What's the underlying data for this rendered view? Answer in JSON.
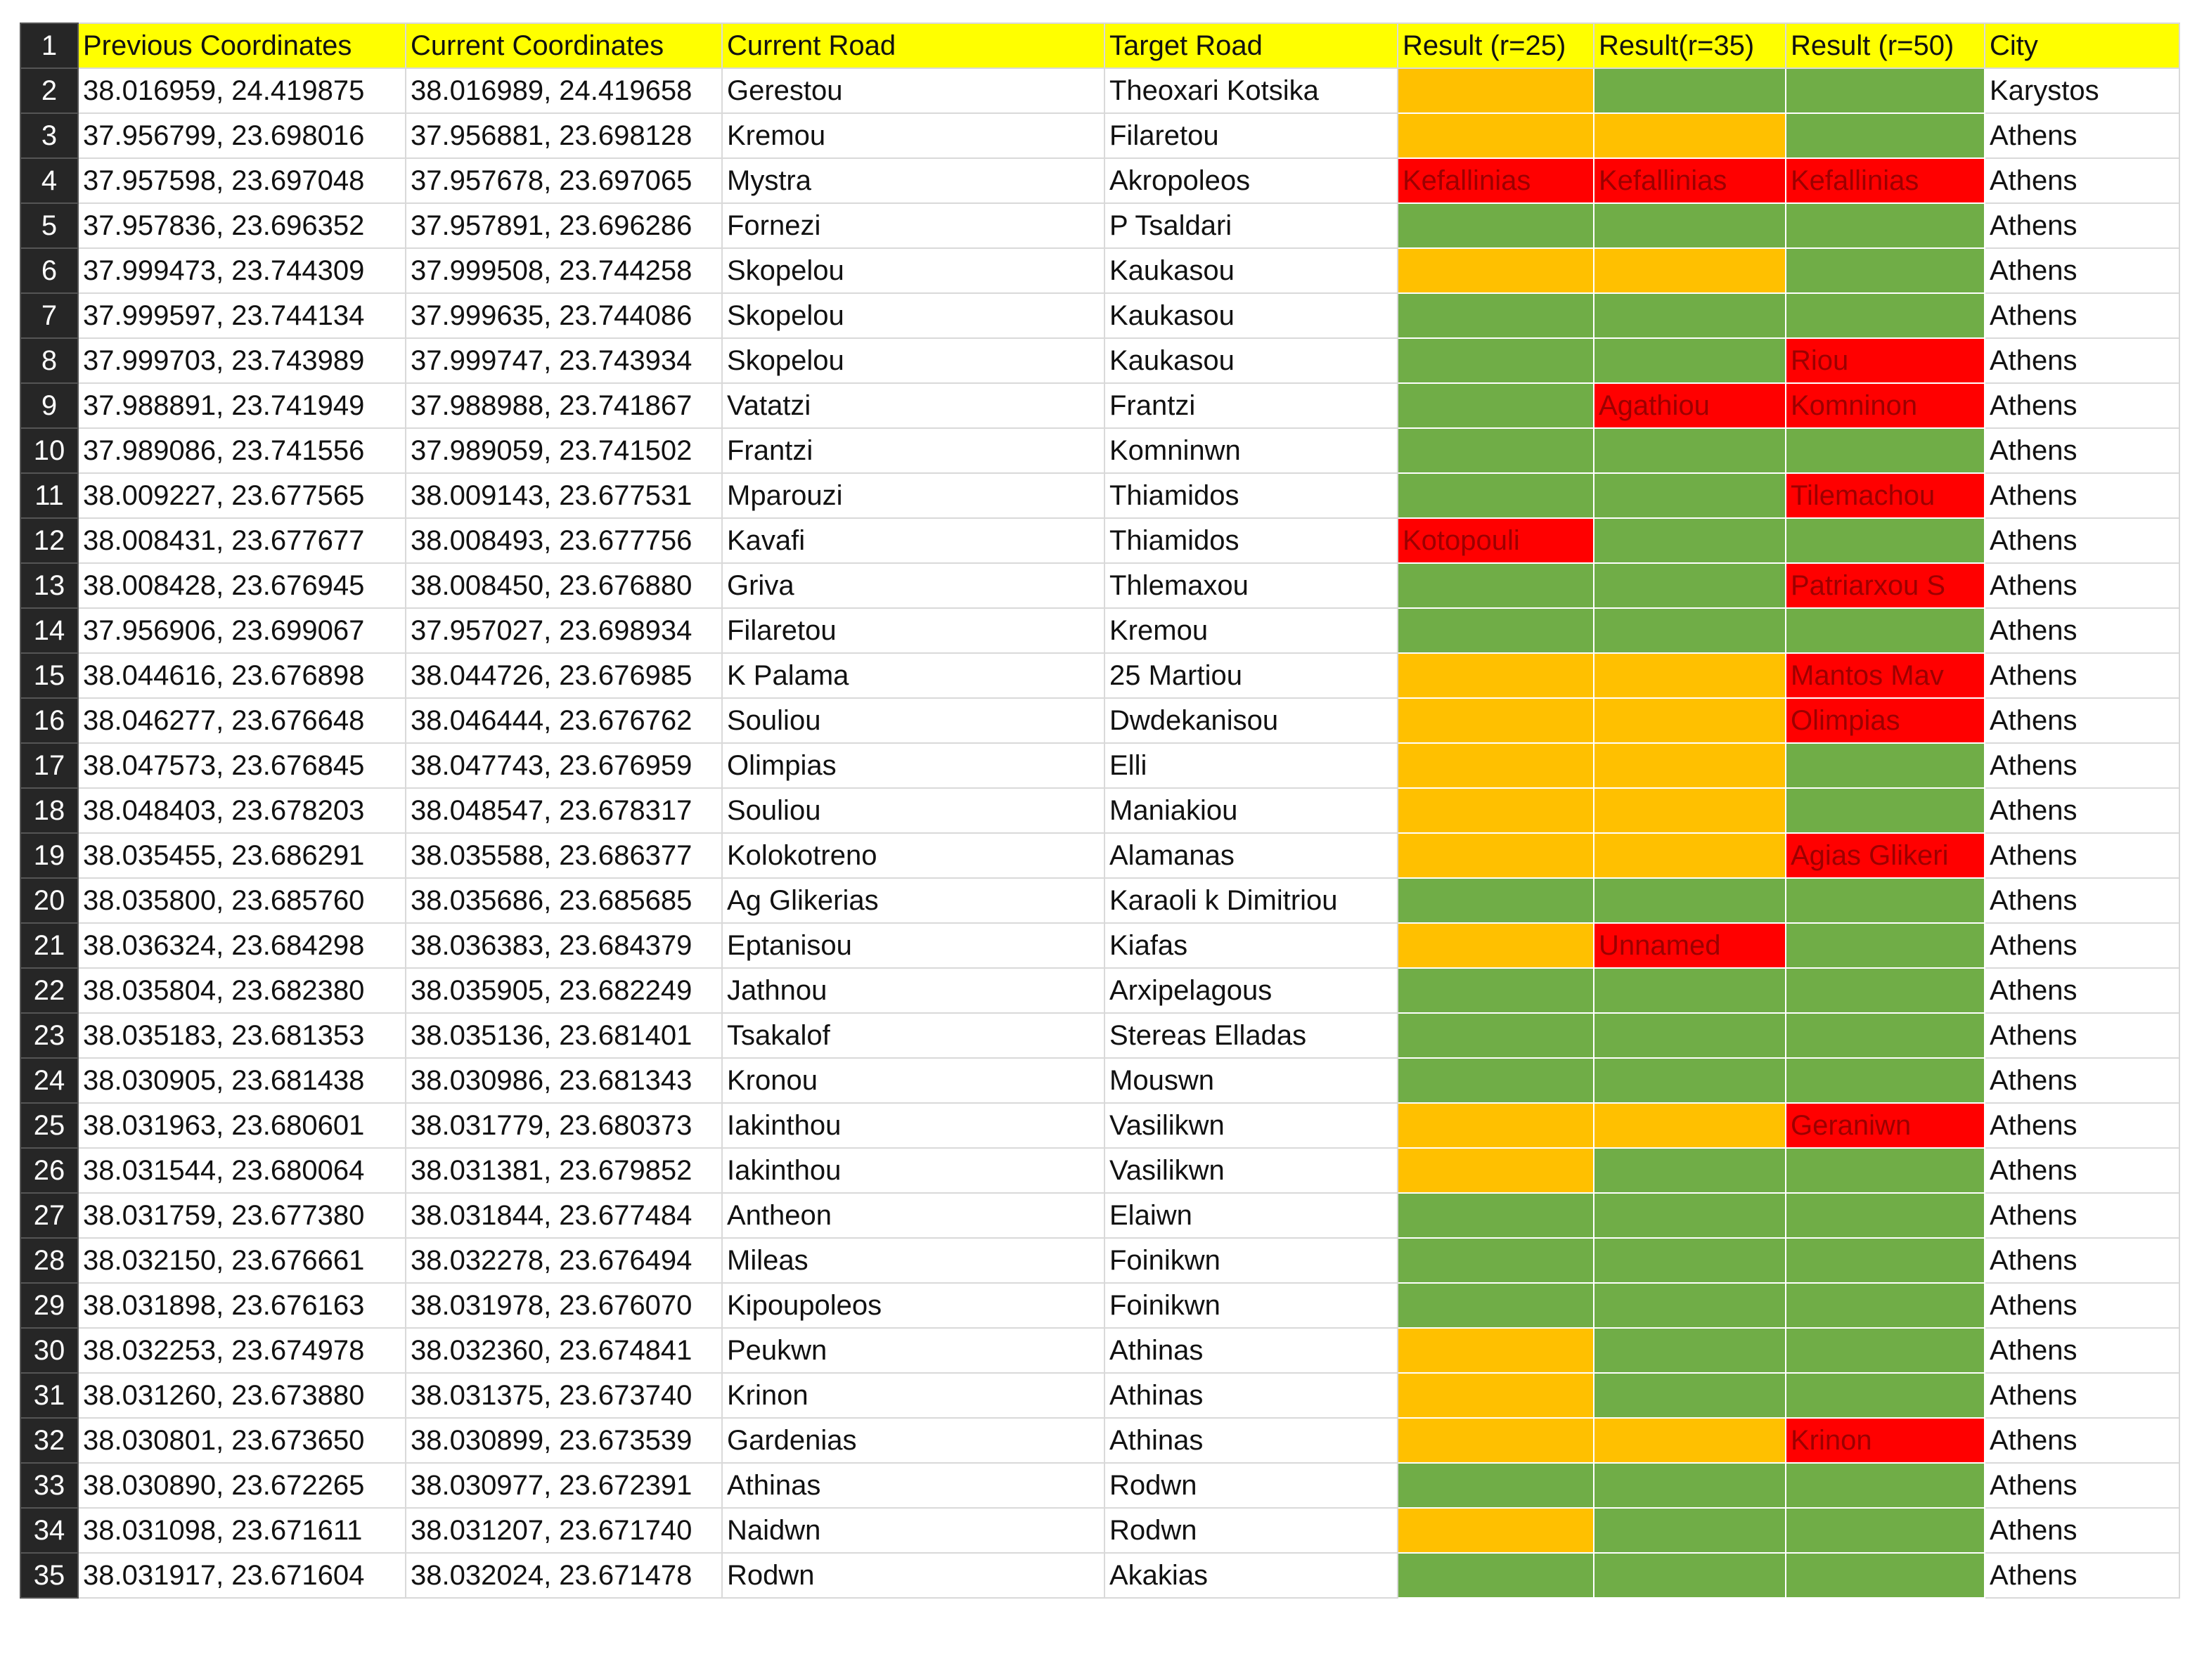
{
  "header": {
    "row_number": 1,
    "columns": [
      "Previous Coordinates",
      "Current Coordinates",
      "Current Road",
      "Target Road",
      "Result (r=25)",
      "Result(r=35)",
      "Result (r=50)",
      "City"
    ],
    "color": "#ffff00"
  },
  "rows": [
    [
      2,
      "38.016959, 24.419875",
      "38.016989, 24.419658",
      "Gerestou",
      "Theoxari Kotsika",
      {
        "color": "#ffc000"
      },
      {
        "color": "#70ad47"
      },
      {
        "color": "#70ad47"
      },
      "Karystos"
    ],
    [
      3,
      "37.956799, 23.698016",
      "37.956881, 23.698128",
      "Kremou",
      "Filaretou",
      {
        "color": "#ffc000"
      },
      {
        "color": "#ffc000"
      },
      {
        "color": "#70ad47"
      },
      "Athens"
    ],
    [
      4,
      "37.957598, 23.697048",
      "37.957678, 23.697065",
      "Mystra",
      "Akropoleos",
      {
        "color": "#ff0000",
        "text": "Kefallinias"
      },
      {
        "color": "#ff0000",
        "text": "Kefallinias"
      },
      {
        "color": "#ff0000",
        "text": "Kefallinias"
      },
      "Athens"
    ],
    [
      5,
      "37.957836, 23.696352",
      "37.957891, 23.696286",
      "Fornezi",
      "P Tsaldari",
      {
        "color": "#70ad47"
      },
      {
        "color": "#70ad47"
      },
      {
        "color": "#70ad47"
      },
      "Athens"
    ],
    [
      6,
      "37.999473, 23.744309",
      "37.999508, 23.744258",
      "Skopelou",
      "Kaukasou",
      {
        "color": "#ffc000"
      },
      {
        "color": "#ffc000"
      },
      {
        "color": "#70ad47"
      },
      "Athens"
    ],
    [
      7,
      "37.999597, 23.744134",
      "37.999635, 23.744086",
      "Skopelou",
      "Kaukasou",
      {
        "color": "#70ad47"
      },
      {
        "color": "#70ad47"
      },
      {
        "color": "#70ad47"
      },
      "Athens"
    ],
    [
      8,
      "37.999703, 23.743989",
      "37.999747, 23.743934",
      "Skopelou",
      "Kaukasou",
      {
        "color": "#70ad47"
      },
      {
        "color": "#70ad47"
      },
      {
        "color": "#ff0000",
        "text": "Riou"
      },
      "Athens"
    ],
    [
      9,
      "37.988891, 23.741949",
      "37.988988, 23.741867",
      "Vatatzi",
      "Frantzi",
      {
        "color": "#70ad47"
      },
      {
        "color": "#ff0000",
        "text": "Agathiou"
      },
      {
        "color": "#ff0000",
        "text": "Komninon"
      },
      "Athens"
    ],
    [
      10,
      "37.989086, 23.741556",
      "37.989059, 23.741502",
      "Frantzi",
      "Komninwn",
      {
        "color": "#70ad47"
      },
      {
        "color": "#70ad47"
      },
      {
        "color": "#70ad47"
      },
      "Athens"
    ],
    [
      11,
      "38.009227, 23.677565",
      "38.009143, 23.677531",
      "Mparouzi",
      "Thiamidos",
      {
        "color": "#70ad47"
      },
      {
        "color": "#70ad47"
      },
      {
        "color": "#ff0000",
        "text": "Tilemachou"
      },
      "Athens"
    ],
    [
      12,
      "38.008431, 23.677677",
      "38.008493, 23.677756",
      "Kavafi",
      "Thiamidos",
      {
        "color": "#ff0000",
        "text": "Kotopouli"
      },
      {
        "color": "#70ad47"
      },
      {
        "color": "#70ad47"
      },
      "Athens"
    ],
    [
      13,
      "38.008428, 23.676945",
      "38.008450, 23.676880",
      "Griva",
      "Thlemaxou",
      {
        "color": "#70ad47"
      },
      {
        "color": "#70ad47"
      },
      {
        "color": "#ff0000",
        "text": "Patriarxou S"
      },
      "Athens"
    ],
    [
      14,
      "37.956906, 23.699067",
      "37.957027, 23.698934",
      "Filaretou",
      "Kremou",
      {
        "color": "#70ad47"
      },
      {
        "color": "#70ad47"
      },
      {
        "color": "#70ad47"
      },
      "Athens"
    ],
    [
      15,
      "38.044616, 23.676898",
      "38.044726, 23.676985",
      "K Palama",
      "25 Martiou",
      {
        "color": "#ffc000"
      },
      {
        "color": "#ffc000"
      },
      {
        "color": "#ff0000",
        "text": "Mantos Mav"
      },
      "Athens"
    ],
    [
      16,
      "38.046277, 23.676648",
      "38.046444, 23.676762",
      "Souliou",
      "Dwdekanisou",
      {
        "color": "#ffc000"
      },
      {
        "color": "#ffc000"
      },
      {
        "color": "#ff0000",
        "text": "Olimpias"
      },
      "Athens"
    ],
    [
      17,
      "38.047573, 23.676845",
      "38.047743, 23.676959",
      "Olimpias",
      "Elli",
      {
        "color": "#ffc000"
      },
      {
        "color": "#ffc000"
      },
      {
        "color": "#70ad47"
      },
      "Athens"
    ],
    [
      18,
      "38.048403, 23.678203",
      "38.048547, 23.678317",
      "Souliou",
      "Maniakiou",
      {
        "color": "#ffc000"
      },
      {
        "color": "#ffc000"
      },
      {
        "color": "#70ad47"
      },
      "Athens"
    ],
    [
      19,
      "38.035455, 23.686291",
      "38.035588, 23.686377",
      "Kolokotreno",
      "Alamanas",
      {
        "color": "#ffc000"
      },
      {
        "color": "#ffc000"
      },
      {
        "color": "#ff0000",
        "text": "Agias Glikeri"
      },
      "Athens"
    ],
    [
      20,
      "38.035800, 23.685760",
      "38.035686, 23.685685",
      "Ag Glikerias",
      "Karaoli k Dimitriou",
      {
        "color": "#70ad47"
      },
      {
        "color": "#70ad47"
      },
      {
        "color": "#70ad47"
      },
      "Athens"
    ],
    [
      21,
      "38.036324, 23.684298",
      "38.036383, 23.684379",
      "Eptanisou",
      "Kiafas",
      {
        "color": "#ffc000"
      },
      {
        "color": "#ff0000",
        "text": "Unnamed"
      },
      {
        "color": "#70ad47"
      },
      "Athens"
    ],
    [
      22,
      "38.035804, 23.682380",
      "38.035905, 23.682249",
      "Jathnou",
      "Arxipelagous",
      {
        "color": "#70ad47"
      },
      {
        "color": "#70ad47"
      },
      {
        "color": "#70ad47"
      },
      "Athens"
    ],
    [
      23,
      "38.035183, 23.681353",
      "38.035136, 23.681401",
      "Tsakalof",
      "Stereas Elladas",
      {
        "color": "#70ad47"
      },
      {
        "color": "#70ad47"
      },
      {
        "color": "#70ad47"
      },
      "Athens"
    ],
    [
      24,
      "38.030905, 23.681438",
      "38.030986, 23.681343",
      "Kronou",
      "Mouswn",
      {
        "color": "#70ad47"
      },
      {
        "color": "#70ad47"
      },
      {
        "color": "#70ad47"
      },
      "Athens"
    ],
    [
      25,
      "38.031963, 23.680601",
      "38.031779, 23.680373",
      "Iakinthou",
      "Vasilikwn",
      {
        "color": "#ffc000"
      },
      {
        "color": "#ffc000"
      },
      {
        "color": "#ff0000",
        "text": "Geraniwn"
      },
      "Athens"
    ],
    [
      26,
      "38.031544, 23.680064",
      "38.031381, 23.679852",
      "Iakinthou",
      "Vasilikwn",
      {
        "color": "#ffc000"
      },
      {
        "color": "#70ad47"
      },
      {
        "color": "#70ad47"
      },
      "Athens"
    ],
    [
      27,
      "38.031759, 23.677380",
      "38.031844, 23.677484",
      "Antheon",
      "Elaiwn",
      {
        "color": "#70ad47"
      },
      {
        "color": "#70ad47"
      },
      {
        "color": "#70ad47"
      },
      "Athens"
    ],
    [
      28,
      "38.032150, 23.676661",
      "38.032278, 23.676494",
      "Mileas",
      "Foinikwn",
      {
        "color": "#70ad47"
      },
      {
        "color": "#70ad47"
      },
      {
        "color": "#70ad47"
      },
      "Athens"
    ],
    [
      29,
      "38.031898, 23.676163",
      "38.031978, 23.676070",
      "Kipoupoleos",
      "Foinikwn",
      {
        "color": "#70ad47"
      },
      {
        "color": "#70ad47"
      },
      {
        "color": "#70ad47"
      },
      "Athens"
    ],
    [
      30,
      "38.032253, 23.674978",
      "38.032360, 23.674841",
      "Peukwn",
      "Athinas",
      {
        "color": "#ffc000"
      },
      {
        "color": "#70ad47"
      },
      {
        "color": "#70ad47"
      },
      "Athens"
    ],
    [
      31,
      "38.031260, 23.673880",
      "38.031375, 23.673740",
      "Krinon",
      "Athinas",
      {
        "color": "#ffc000"
      },
      {
        "color": "#70ad47"
      },
      {
        "color": "#70ad47"
      },
      "Athens"
    ],
    [
      32,
      "38.030801, 23.673650",
      "38.030899, 23.673539",
      "Gardenias",
      "Athinas",
      {
        "color": "#ffc000"
      },
      {
        "color": "#ffc000"
      },
      {
        "color": "#ff0000",
        "text": "Krinon"
      },
      "Athens"
    ],
    [
      33,
      "38.030890, 23.672265",
      "38.030977, 23.672391",
      "Athinas",
      "Rodwn",
      {
        "color": "#70ad47"
      },
      {
        "color": "#70ad47"
      },
      {
        "color": "#70ad47"
      },
      "Athens"
    ],
    [
      34,
      "38.031098, 23.671611",
      "38.031207, 23.671740",
      "Naidwn",
      "Rodwn",
      {
        "color": "#ffc000"
      },
      {
        "color": "#70ad47"
      },
      {
        "color": "#70ad47"
      },
      "Athens"
    ],
    [
      35,
      "38.031917, 23.671604",
      "38.032024, 23.671478",
      "Rodwn",
      "Akakias",
      {
        "color": "#70ad47"
      },
      {
        "color": "#70ad47"
      },
      {
        "color": "#70ad47"
      },
      "Athens"
    ]
  ]
}
